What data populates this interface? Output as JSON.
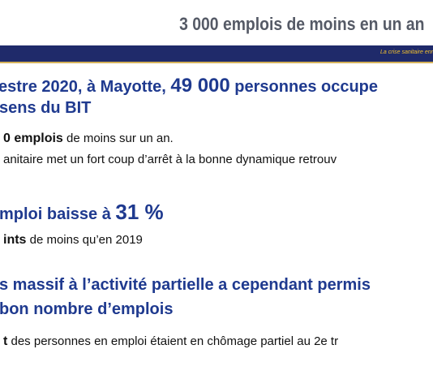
{
  "header": {
    "title": "3 000 emplois de moins en un an",
    "band_text": "La crise sanitaire enr"
  },
  "sections": {
    "s1": {
      "line1_pre": "estre 2020, à Mayotte, ",
      "line1_big": "49 000",
      "line1_post": " personnes occupe",
      "line2": "sens du BIT"
    },
    "s1_bullets": {
      "b1_bold": "0 emplois",
      "b1_rest": " de moins sur un an.",
      "b2": "anitaire met un fort coup d’arrêt à la bonne dynamique retrouv"
    },
    "s2": {
      "pre": "mploi baisse à ",
      "big": "31 %"
    },
    "s2_bullet": {
      "bold": "ints",
      "rest": " de moins qu’en 2019"
    },
    "s3": {
      "line1": "s massif à l’activité partielle a cependant permis",
      "line2": "bon nombre d’emplois"
    },
    "s3_bullet": {
      "bold": "t",
      "rest": " des personnes en emploi étaient en chômage partiel au 2e tr"
    }
  }
}
